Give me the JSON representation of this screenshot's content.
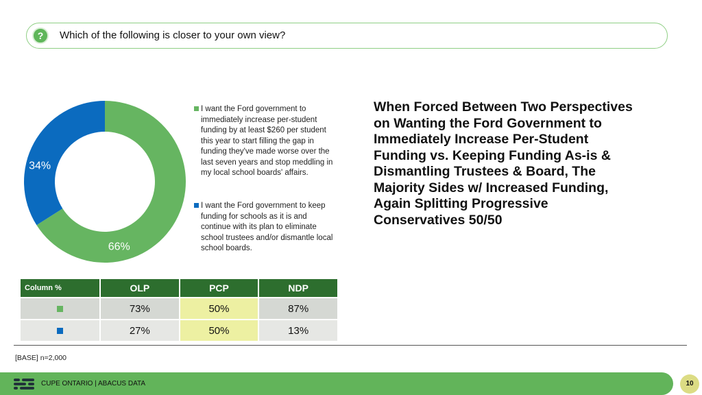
{
  "question": {
    "icon": "question-icon",
    "text": "Which of the following is closer to your own view?"
  },
  "colors": {
    "green": "#66b561",
    "blue": "#0b6bbf",
    "header_green": "#2d6e2e",
    "highlight": "#edf0a2"
  },
  "chart_data": {
    "type": "pie",
    "donut": true,
    "title": "",
    "series": [
      {
        "name": "I want the Ford government to immediately increase per-student funding by at least $260 per student this year to start filling the gap in funding they've made worse over the last seven years and stop meddling in my local school boards' affairs.",
        "value": 66,
        "label": "66%",
        "color": "#66b561"
      },
      {
        "name": "I want the Ford government to keep funding for schools as it is and continue with its plan to eliminate school trustees and/or dismantle local school boards.",
        "value": 34,
        "label": "34%",
        "color": "#0b6bbf"
      }
    ]
  },
  "headline": "When Forced Between Two Perspectives on Wanting the Ford Government to Immediately Increase Per-Student Funding vs. Keeping Funding As-is & Dismantling Trustees & Board, The Majority Sides w/ Increased Funding, Again Splitting Progressive Conservatives 50/50",
  "table": {
    "corner_label": "Column %",
    "columns": [
      "OLP",
      "PCP",
      "NDP"
    ],
    "rows": [
      {
        "swatch": "#66b561",
        "values": [
          "73%",
          "50%",
          "87%"
        ]
      },
      {
        "swatch": "#0b6bbf",
        "values": [
          "27%",
          "50%",
          "13%"
        ]
      }
    ]
  },
  "base": "[BASE] n=2,000",
  "footer": {
    "text": "CUPE ONTARIO  |  ABACUS DATA",
    "page": "10"
  }
}
